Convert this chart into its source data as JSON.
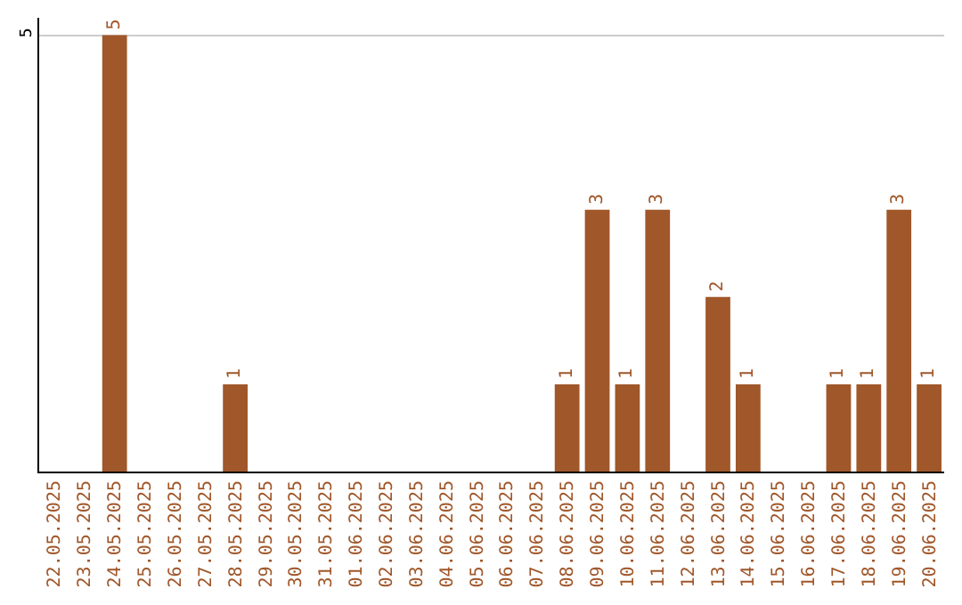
{
  "chart_data": {
    "type": "bar",
    "categories": [
      "22.05.2025",
      "23.05.2025",
      "24.05.2025",
      "25.05.2025",
      "26.05.2025",
      "27.05.2025",
      "28.05.2025",
      "29.05.2025",
      "30.05.2025",
      "31.05.2025",
      "01.06.2025",
      "02.06.2025",
      "03.06.2025",
      "04.06.2025",
      "05.06.2025",
      "06.06.2025",
      "07.06.2025",
      "08.06.2025",
      "09.06.2025",
      "10.06.2025",
      "11.06.2025",
      "12.06.2025",
      "13.06.2025",
      "14.06.2025",
      "15.06.2025",
      "16.06.2025",
      "17.06.2025",
      "18.06.2025",
      "19.06.2025",
      "20.06.2025"
    ],
    "values": [
      0,
      0,
      5,
      0,
      0,
      0,
      1,
      0,
      0,
      0,
      0,
      0,
      0,
      0,
      0,
      0,
      0,
      1,
      3,
      1,
      3,
      0,
      2,
      1,
      0,
      0,
      1,
      1,
      3,
      1
    ],
    "value_labels": [
      null,
      null,
      "5",
      null,
      null,
      null,
      "1",
      null,
      null,
      null,
      null,
      null,
      null,
      null,
      null,
      null,
      null,
      "1",
      "3",
      "1",
      "3",
      null,
      "2",
      "1",
      null,
      null,
      "1",
      "1",
      "3",
      "1"
    ],
    "color": "#a0572a",
    "ylim": [
      0,
      5.2
    ],
    "yticks": [
      5
    ],
    "grid": "y",
    "legend": false
  }
}
